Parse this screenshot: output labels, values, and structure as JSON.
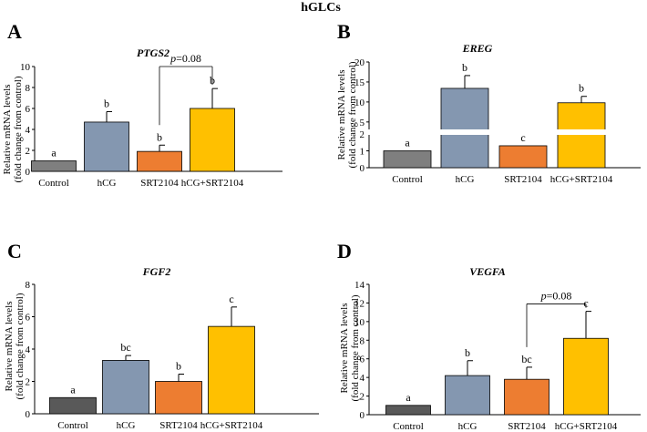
{
  "figure": {
    "title": "hGLCs"
  },
  "chart_data": [
    {
      "panel": "A",
      "type": "bar",
      "title": "PTGS2",
      "ylabel_line1": "Relative mRNA levels",
      "ylabel_line2": "(fold change from control)",
      "categories": [
        "Control",
        "hCG",
        "SRT2104",
        "hCG+SRT2104"
      ],
      "values": [
        1.0,
        4.7,
        1.9,
        6.0
      ],
      "errors": [
        0.0,
        1.0,
        0.6,
        1.9
      ],
      "colors": [
        "#7f7f7f",
        "#8497b0",
        "#ed7d31",
        "#ffc000"
      ],
      "significance": [
        "a",
        "b",
        "b",
        "b"
      ],
      "ylim": [
        0,
        10
      ],
      "yticks": [
        "0",
        "2",
        "4",
        "6",
        "8",
        "10"
      ],
      "comparison": {
        "from": 2,
        "to": 3,
        "label": "p=0.08",
        "p_symbol": "p",
        "p_rest": "=0.08",
        "level": 10.0
      }
    },
    {
      "panel": "B",
      "type": "bar",
      "title": "EREG",
      "ylabel_line1": "Relative mRNA levels",
      "ylabel_line2": "(fold change from control)",
      "categories": [
        "Control",
        "hCG",
        "SRT2104",
        "hCG+SRT2104"
      ],
      "values": [
        1.0,
        13.4,
        1.3,
        9.8
      ],
      "errors": [
        0.0,
        3.2,
        0.03,
        1.6
      ],
      "colors": [
        "#7f7f7f",
        "#8497b0",
        "#ed7d31",
        "#ffc000"
      ],
      "significance": [
        "a",
        "b",
        "c",
        "b"
      ],
      "broken_axis": {
        "lower_range": [
          0,
          2
        ],
        "upper_range": [
          2,
          20
        ]
      },
      "ylim": [
        0,
        20
      ],
      "yticks": [
        "0",
        "1",
        "2",
        "5",
        "10",
        "15",
        "20"
      ],
      "comparison": null
    },
    {
      "panel": "C",
      "type": "bar",
      "title": "FGF2",
      "ylabel_line1": "Relative mRNA levels",
      "ylabel_line2": "(fold change from control)",
      "categories": [
        "Control",
        "hCG",
        "SRT2104",
        "hCG+SRT2104"
      ],
      "values": [
        1.0,
        3.3,
        2.0,
        5.4
      ],
      "errors": [
        0.0,
        0.3,
        0.45,
        1.2
      ],
      "colors": [
        "#595959",
        "#8497b0",
        "#ed7d31",
        "#ffc000"
      ],
      "significance": [
        "a",
        "bc",
        "b",
        "c"
      ],
      "ylim": [
        0,
        8
      ],
      "yticks": [
        "0",
        "2",
        "4",
        "6",
        "8"
      ],
      "comparison": null
    },
    {
      "panel": "D",
      "type": "bar",
      "title": "VEGFA",
      "ylabel_line1": "Relative mRNA levels",
      "ylabel_line2": "(fold change from control)",
      "categories": [
        "Control",
        "hCG",
        "SRT2104",
        "hCG+SRT2104"
      ],
      "values": [
        1.0,
        4.2,
        3.8,
        8.2
      ],
      "errors": [
        0.0,
        1.6,
        1.3,
        2.9
      ],
      "colors": [
        "#595959",
        "#8497b0",
        "#ed7d31",
        "#ffc000"
      ],
      "significance": [
        "a",
        "b",
        "bc",
        "c"
      ],
      "ylim": [
        0,
        14
      ],
      "yticks": [
        "0",
        "2",
        "4",
        "6",
        "8",
        "10",
        "12",
        "14"
      ],
      "comparison": {
        "from": 2,
        "to": 3,
        "label": "p=0.08",
        "p_symbol": "p",
        "p_rest": "=0.08",
        "level": 11.9
      }
    }
  ]
}
